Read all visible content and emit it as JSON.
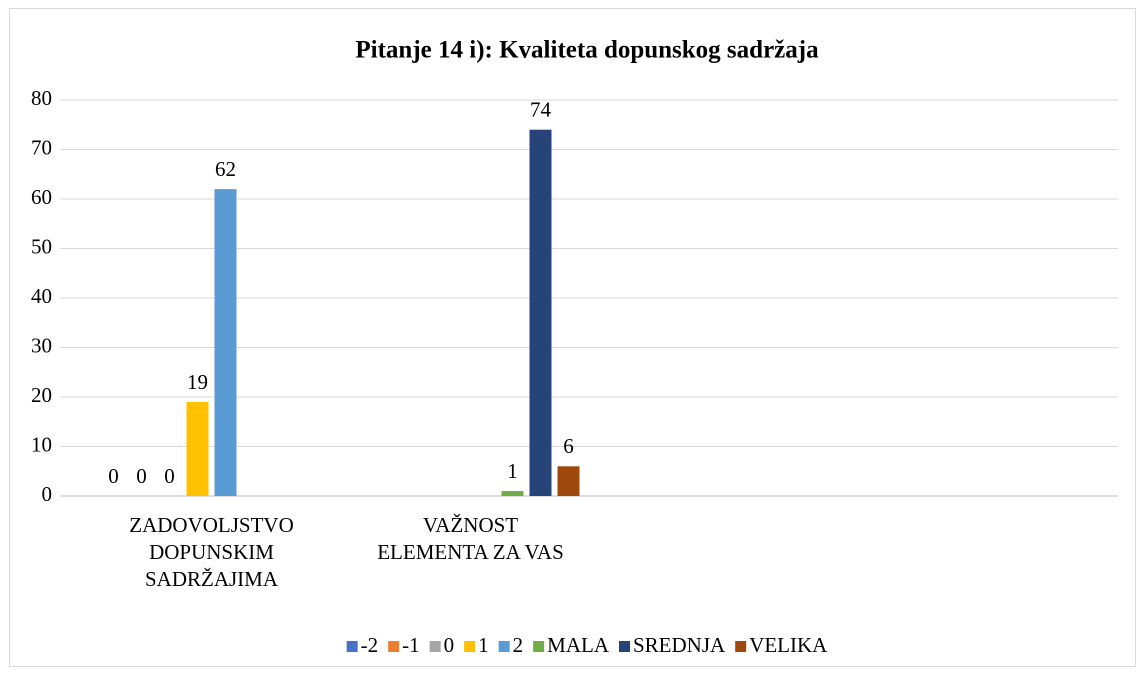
{
  "chart_data": {
    "type": "bar",
    "title": "Pitanje 14 i): Kvaliteta dopunskog sadržaja",
    "categories": [
      "ZADOVOLJSTVO DOPUNSKIM SADRŽAJIMA",
      "VAŽNOST ELEMENTA ZA VAS",
      null,
      null
    ],
    "series": [
      {
        "name": "-2",
        "color": "#4472c4",
        "values": [
          0,
          null,
          null,
          null
        ]
      },
      {
        "name": "-1",
        "color": "#ed7d31",
        "values": [
          0,
          null,
          null,
          null
        ]
      },
      {
        "name": "0",
        "color": "#a5a5a5",
        "values": [
          0,
          null,
          null,
          null
        ]
      },
      {
        "name": "1",
        "color": "#ffc000",
        "values": [
          19,
          null,
          null,
          null
        ]
      },
      {
        "name": "2",
        "color": "#5b9bd5",
        "values": [
          62,
          null,
          null,
          null
        ]
      },
      {
        "name": "MALA",
        "color": "#70ad47",
        "values": [
          null,
          1,
          null,
          null
        ]
      },
      {
        "name": "SREDNJA",
        "color": "#264478",
        "values": [
          null,
          74,
          null,
          null
        ]
      },
      {
        "name": "VELIKA",
        "color": "#9e480e",
        "values": [
          null,
          6,
          null,
          null
        ]
      }
    ],
    "ylim": [
      0,
      80
    ],
    "yticks": [
      0,
      10,
      20,
      30,
      40,
      50,
      60,
      70,
      80
    ],
    "grid": true,
    "legend": "bottom"
  }
}
